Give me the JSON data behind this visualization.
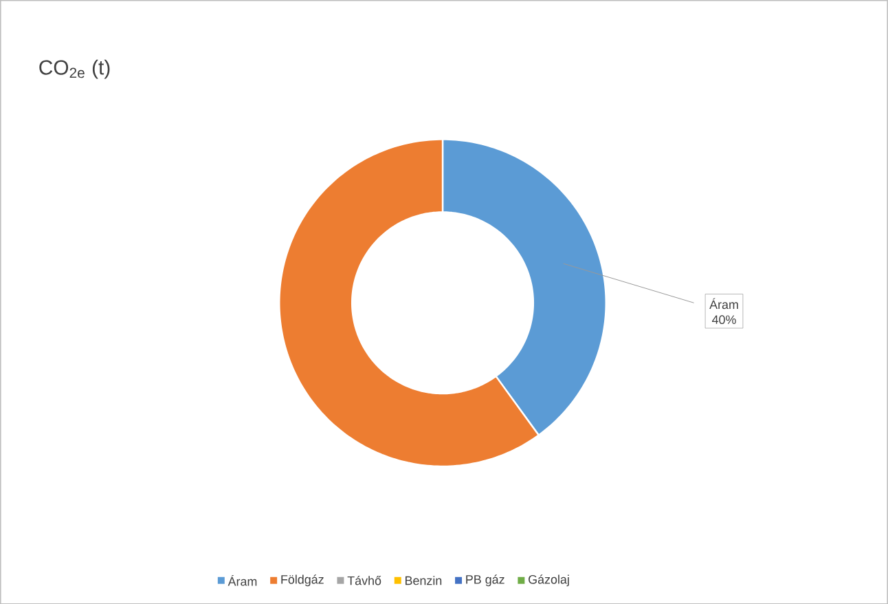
{
  "chart_data": {
    "type": "donut",
    "title": "CO$_{2e}$ (t)",
    "categories": [
      "Áram",
      "Földgáz",
      "Távhő",
      "Benzin",
      "PB gáz",
      "Gázolaj"
    ],
    "values": [
      40,
      60,
      0,
      0,
      0,
      0
    ],
    "colors": [
      "#5b9bd5",
      "#ed7d31",
      "#a5a5a5",
      "#ffc000",
      "#4472c4",
      "#70ad47"
    ],
    "value_labels": [
      "40%",
      null,
      null,
      null,
      null,
      null
    ],
    "legend": "bottom"
  }
}
